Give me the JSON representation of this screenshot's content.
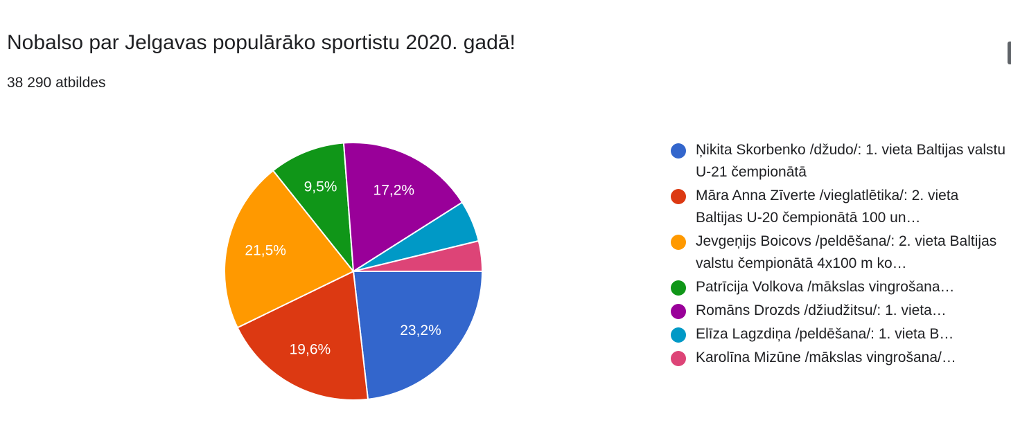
{
  "header": {
    "title": "Nobalso par Jelgavas populārāko sportistu 2020. gadā!",
    "responses": "38 290 atbildes"
  },
  "chart_data": {
    "type": "pie",
    "start_angle_deg": 90,
    "direction": "clockwise",
    "legend_position": "right",
    "slices": [
      {
        "name": "Ņikita Skorbenko /džudo/: 1. vieta Baltijas valstu U-21 čempionātā",
        "value": 23.2,
        "label": "23,2%",
        "color": "#3366cc"
      },
      {
        "name": "Māra Anna Zīverte /vieglatlētika/: 2. vieta Baltijas U-20 čempionātā 100 un…",
        "value": 19.6,
        "label": "19,6%",
        "color": "#dc3912"
      },
      {
        "name": "Jevgeņijs Boicovs /peldēšana/: 2. vieta Baltijas valstu čempionātā 4x100 m ko…",
        "value": 21.5,
        "label": "21,5%",
        "color": "#ff9900"
      },
      {
        "name": "Patrīcija Volkova /mākslas vingrošana…",
        "value": 9.5,
        "label": "9,5%",
        "color": "#109618"
      },
      {
        "name": "Romāns Drozds /džiudžitsu/: 1. vieta…",
        "value": 17.2,
        "label": "17,2%",
        "color": "#990099"
      },
      {
        "name": "Elīza Lagzdiņa /peldēšana/: 1. vieta B…",
        "value": 5.2,
        "label": "",
        "color": "#0099c6"
      },
      {
        "name": "Karolīna Mizūne /mākslas vingrošana/…",
        "value": 3.8,
        "label": "",
        "color": "#dd4477"
      }
    ]
  }
}
